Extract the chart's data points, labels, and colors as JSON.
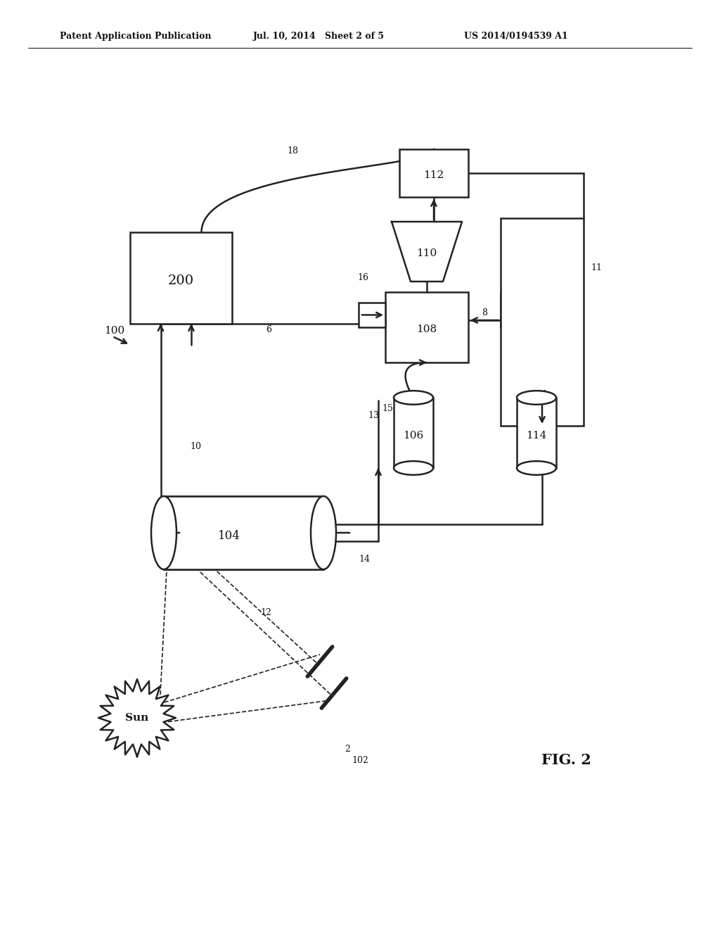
{
  "header_left": "Patent Application Publication",
  "header_mid": "Jul. 10, 2014   Sheet 2 of 5",
  "header_right": "US 2014/0194539 A1",
  "fig_label": "FIG. 2",
  "bg": "#ffffff",
  "lc": "#222222"
}
